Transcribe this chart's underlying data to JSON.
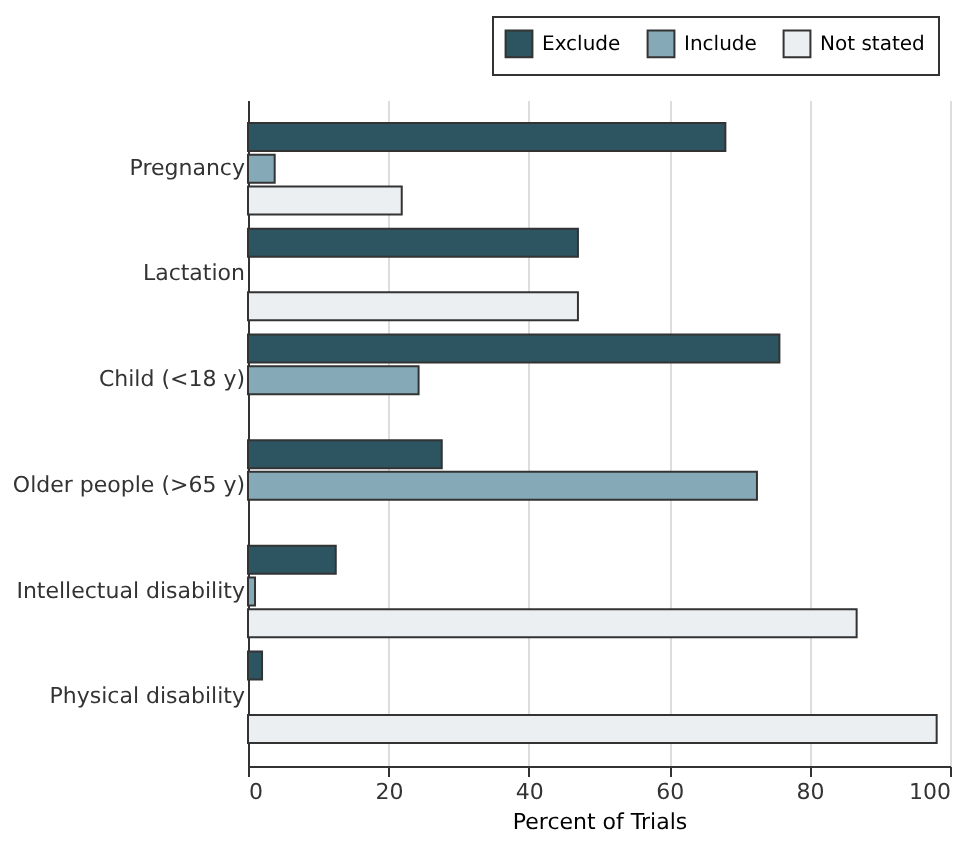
{
  "chart_data": {
    "type": "bar",
    "orientation": "horizontal",
    "xlabel": "Percent of Trials",
    "categories": [
      "Pregnancy",
      "Lactation",
      "Child (<18 y)",
      "Older people (>65 y)",
      "Intellectual disability",
      "Physical disability"
    ],
    "series": [
      {
        "name": "Exclude",
        "color": "#2d5461",
        "values": [
          68,
          47,
          75.7,
          27.6,
          12.5,
          2
        ]
      },
      {
        "name": "Include",
        "color": "#86a9b8",
        "values": [
          3.8,
          null,
          24.3,
          72.5,
          1,
          null
        ]
      },
      {
        "name": "Not stated",
        "color": "#ebeff2",
        "values": [
          21.9,
          47,
          null,
          null,
          86.7,
          98.1
        ]
      }
    ],
    "xlim": [
      0,
      100
    ],
    "xticks": [
      0,
      20,
      40,
      60,
      80,
      100
    ],
    "grid": "x",
    "legend": "top right"
  }
}
